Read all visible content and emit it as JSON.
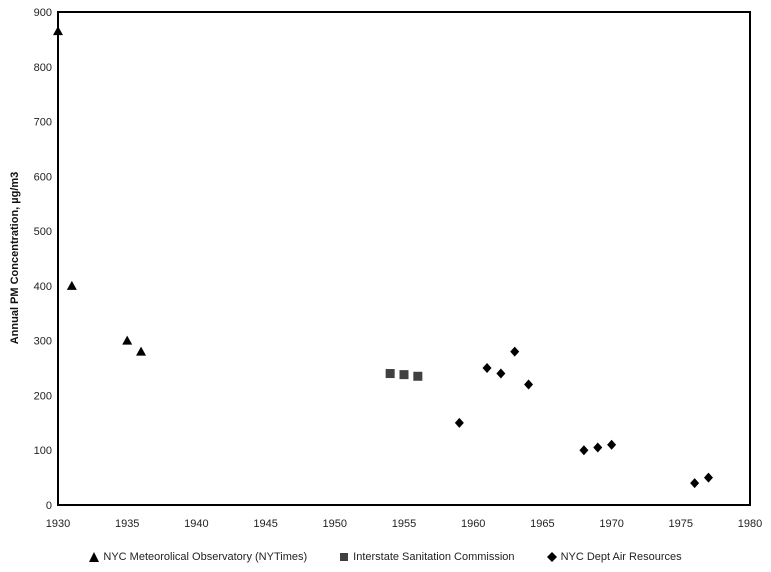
{
  "chart_data": {
    "type": "scatter",
    "title": "",
    "xlabel": "",
    "ylabel": "Annual PM Concentration, µg/m3",
    "xlim": [
      1930,
      1980
    ],
    "ylim": [
      0,
      900
    ],
    "xticks": [
      1930,
      1935,
      1940,
      1945,
      1950,
      1955,
      1960,
      1965,
      1970,
      1975,
      1980
    ],
    "yticks": [
      0,
      100,
      200,
      300,
      400,
      500,
      600,
      700,
      800,
      900
    ],
    "grid": false,
    "legend_position": "bottom",
    "series": [
      {
        "name": "NYC Meteorolical Observatory (NYTimes)",
        "marker": "triangle",
        "color": "#000000",
        "points": [
          [
            1930,
            865
          ],
          [
            1931,
            400
          ],
          [
            1935,
            300
          ],
          [
            1936,
            280
          ]
        ]
      },
      {
        "name": "Interstate Sanitation Commission",
        "marker": "square",
        "color": "#404040",
        "points": [
          [
            1954,
            240
          ],
          [
            1955,
            238
          ],
          [
            1956,
            235
          ]
        ]
      },
      {
        "name": "NYC Dept Air Resources",
        "marker": "diamond",
        "color": "#000000",
        "points": [
          [
            1959,
            150
          ],
          [
            1961,
            250
          ],
          [
            1962,
            240
          ],
          [
            1963,
            280
          ],
          [
            1964,
            220
          ],
          [
            1968,
            100
          ],
          [
            1969,
            105
          ],
          [
            1970,
            110
          ],
          [
            1976,
            40
          ],
          [
            1977,
            50
          ]
        ]
      }
    ]
  }
}
